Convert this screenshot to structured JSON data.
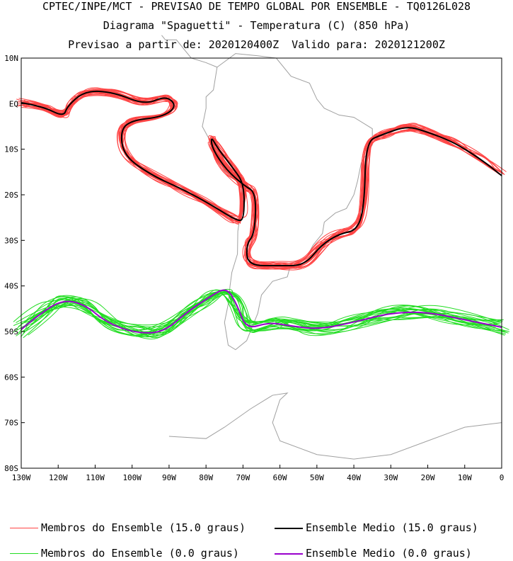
{
  "header": {
    "line1": "CPTEC/INPE/MCT - PREVISAO DE TEMPO GLOBAL POR ENSEMBLE - TQ0126L028",
    "line2": "Diagrama \"Spaguetti\" - Temperatura (C) (850 hPa)",
    "line3": "Previsao a partir de: 2020120400Z  Valido para: 2020121200Z"
  },
  "map": {
    "lat_labels": [
      "10N",
      "EQ",
      "10S",
      "20S",
      "30S",
      "40S",
      "50S",
      "60S",
      "70S",
      "80S"
    ],
    "lon_labels": [
      "130W",
      "120W",
      "110W",
      "100W",
      "90W",
      "80W",
      "70W",
      "60W",
      "50W",
      "40W",
      "30W",
      "20W",
      "10W",
      "0"
    ],
    "lat_range": [
      10,
      -80
    ],
    "lon_range": [
      -130,
      0
    ]
  },
  "colors": {
    "red_members": "#ff4444",
    "black_mean": "#000000",
    "green_members": "#22dd22",
    "purple_mean": "#9900cc",
    "coast": "#a0a0a0"
  },
  "legend": {
    "red_members": "Membros do Ensemble (15.0 graus)",
    "black_mean": "Ensemble Medio (15.0 graus)",
    "green_members": "Membros do Ensemble (0.0 graus)",
    "purple_mean": "Ensemble Medio (0.0 graus)"
  }
}
